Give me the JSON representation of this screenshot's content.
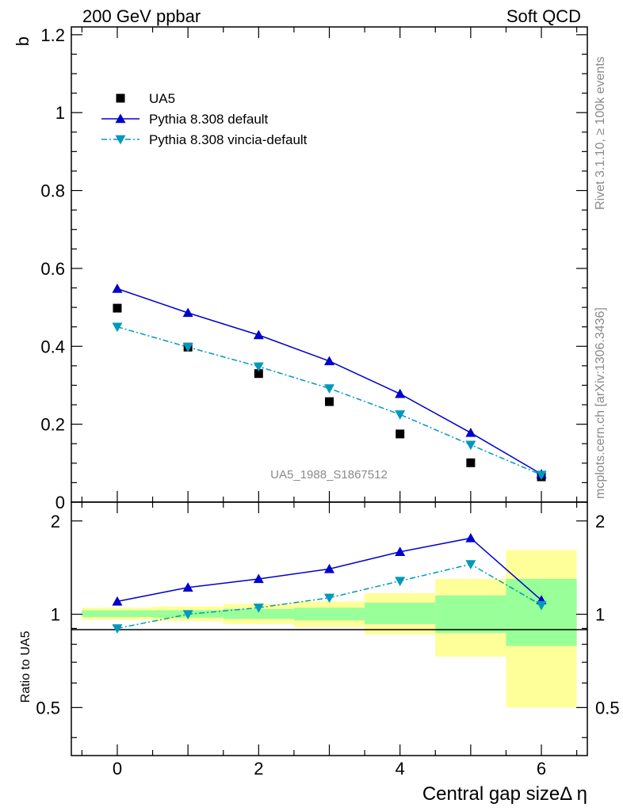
{
  "header": {
    "left": "200 GeV ppbar",
    "right": "Soft QCD"
  },
  "side_labels": {
    "rivet": "Rivet 3.1.10, ≥ 100k events",
    "mcplots": "mcplots.cern.ch [arXiv:1306.3436]"
  },
  "analysis_id": "UA5_1988_S1867512",
  "chart_data": [
    {
      "type": "scatter",
      "ylabel": "b",
      "xlabel": "Central gap sizeΔ η",
      "xlim": [
        -0.65,
        6.65
      ],
      "ylim": [
        0,
        1.22
      ],
      "y_ticks": [
        0,
        0.2,
        0.4,
        0.6,
        0.8,
        1,
        1.2
      ],
      "y_tick_labels": [
        "0",
        "0.2",
        "0.4",
        "0.6",
        "0.8",
        "1",
        "1.2"
      ],
      "x": [
        0,
        1,
        2,
        3,
        4,
        5,
        6
      ],
      "series": [
        {
          "name": "UA5",
          "marker": "square",
          "color": "#000000",
          "values": [
            0.498,
            0.398,
            0.33,
            0.258,
            0.175,
            0.101,
            0.065
          ]
        },
        {
          "name": "Pythia 8.308 default",
          "marker": "triangle-up",
          "line": "solid",
          "color": "#0000cc",
          "values": [
            0.548,
            0.486,
            0.429,
            0.362,
            0.278,
            0.178,
            0.072
          ]
        },
        {
          "name": "Pythia 8.308 vincia-default",
          "marker": "triangle-down",
          "line": "dashdot",
          "color": "#0099bb",
          "values": [
            0.45,
            0.398,
            0.348,
            0.292,
            0.225,
            0.147,
            0.07
          ]
        }
      ],
      "legend_position": "top-left"
    },
    {
      "type": "line",
      "ylabel": "Ratio to UA5",
      "xlabel": "Central gap sizeΔ η",
      "xlim": [
        -0.65,
        6.65
      ],
      "ylim": [
        0.35,
        2.3
      ],
      "y_scale": "log",
      "y_tick_labels": [
        "0.5",
        "1",
        "2"
      ],
      "x_tick_labels": [
        "0",
        "2",
        "4",
        "6"
      ],
      "x": [
        0,
        1,
        2,
        3,
        4,
        5,
        6
      ],
      "series": [
        {
          "name": "Pythia 8.308 default",
          "color": "#0000cc",
          "values": [
            1.1,
            1.22,
            1.3,
            1.4,
            1.59,
            1.76,
            1.11
          ]
        },
        {
          "name": "Pythia 8.308 vincia-default",
          "color": "#0099bb",
          "values": [
            0.9,
            1.0,
            1.05,
            1.13,
            1.28,
            1.45,
            1.07
          ]
        }
      ],
      "bands": {
        "bins": [
          [
            -0.5,
            0.5
          ],
          [
            0.5,
            1.5
          ],
          [
            1.5,
            2.5
          ],
          [
            2.5,
            3.5
          ],
          [
            3.5,
            4.5
          ],
          [
            4.5,
            5.5
          ],
          [
            5.5,
            6.5
          ]
        ],
        "yellow": [
          [
            0.96,
            1.05
          ],
          [
            0.95,
            1.06
          ],
          [
            0.93,
            1.08
          ],
          [
            0.91,
            1.1
          ],
          [
            0.86,
            1.17
          ],
          [
            0.73,
            1.3
          ],
          [
            0.5,
            1.61
          ]
        ],
        "green": [
          [
            0.98,
            1.03
          ],
          [
            0.975,
            1.03
          ],
          [
            0.965,
            1.04
          ],
          [
            0.955,
            1.05
          ],
          [
            0.93,
            1.09
          ],
          [
            0.87,
            1.15
          ],
          [
            0.79,
            1.3
          ]
        ],
        "yellow_color": "#ffff99",
        "green_color": "#99ff99"
      }
    }
  ]
}
